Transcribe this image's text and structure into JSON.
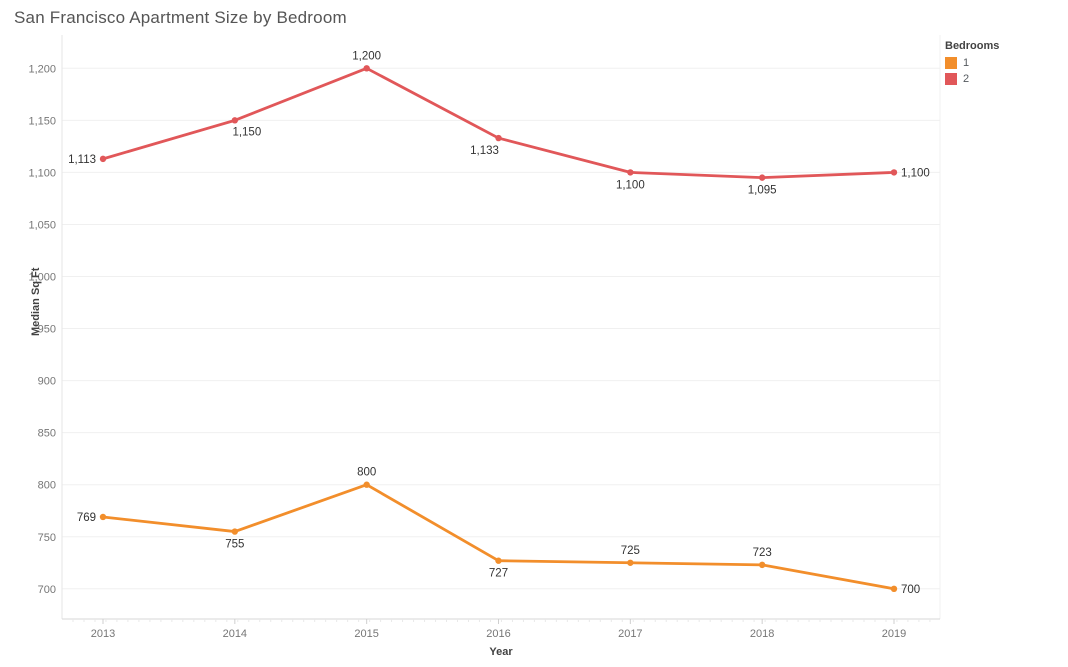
{
  "title": "San Francisco Apartment Size by Bedroom",
  "legend": {
    "title": "Bedrooms",
    "items": [
      {
        "label": "1",
        "color": "#F28E2B"
      },
      {
        "label": "2",
        "color": "#E15759"
      }
    ]
  },
  "chart_data": {
    "type": "line",
    "title": "San Francisco Apartment Size by Bedroom",
    "xlabel": "Year",
    "ylabel": "Median Sq Ft",
    "x": [
      2013,
      2014,
      2015,
      2016,
      2017,
      2018,
      2019
    ],
    "series": [
      {
        "name": "1",
        "color": "#F28E2B",
        "values": [
          769,
          755,
          800,
          727,
          725,
          723,
          700
        ],
        "label_positions": [
          "left",
          "below",
          "above",
          "below",
          "above",
          "above",
          "right"
        ]
      },
      {
        "name": "2",
        "color": "#E15759",
        "values": [
          1113,
          1150,
          1200,
          1133,
          1100,
          1095,
          1100
        ],
        "label_positions": [
          "left",
          "below-right",
          "above",
          "below-left",
          "below",
          "below",
          "right"
        ]
      }
    ],
    "yticks": [
      700,
      750,
      800,
      850,
      900,
      950,
      1000,
      1050,
      1100,
      1150,
      1200
    ],
    "ylim": [
      671,
      1232
    ],
    "grid": true,
    "legend_position": "top-right",
    "legend_title": "Bedrooms",
    "data_labels": true,
    "value_format": "thousands-comma",
    "colors": {
      "gridline": "#f0f0f0",
      "axis_line": "#d7d7d7",
      "tick_label": "#767676",
      "data_label": "#333333"
    }
  }
}
